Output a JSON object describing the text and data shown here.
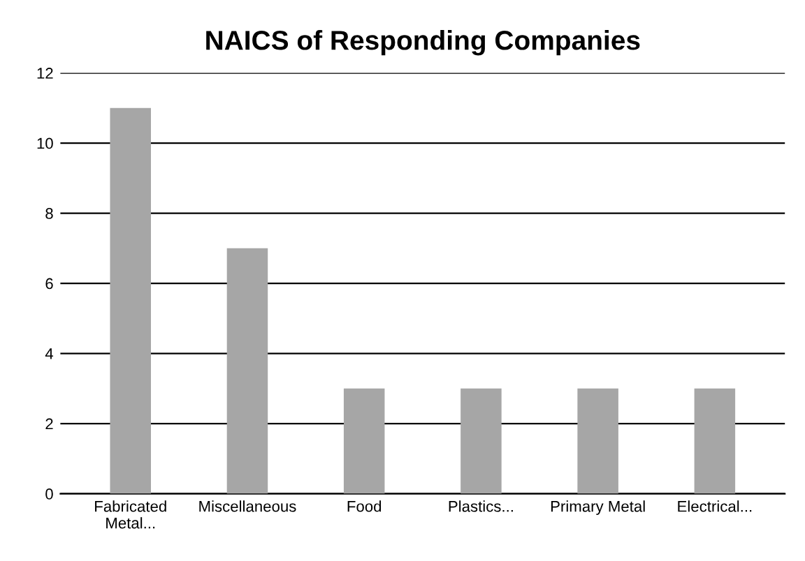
{
  "chart_data": {
    "type": "bar",
    "title": "NAICS of Responding Companies",
    "categories": [
      "Fabricated\nMetal...",
      "Miscellaneous",
      "Food",
      "Plastics...",
      "Primary Metal",
      "Electrical..."
    ],
    "values": [
      11,
      7,
      3,
      3,
      3,
      3
    ],
    "color": "#a6a6a6",
    "ylim": [
      0,
      12
    ],
    "yticks": [
      0,
      2,
      4,
      6,
      8,
      10,
      12
    ],
    "grid": "y",
    "legend": false
  }
}
